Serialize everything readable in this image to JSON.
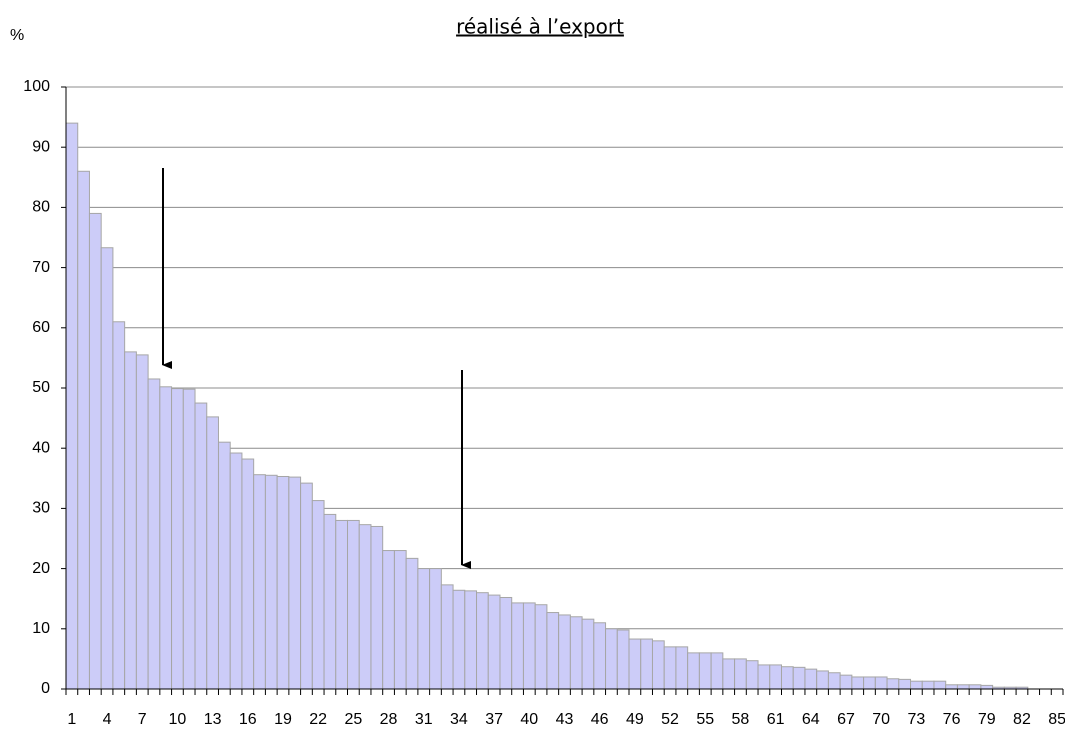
{
  "chart_data": {
    "type": "bar",
    "title": "réalisé à l’export",
    "y_label": "%",
    "categories": [
      "1",
      null,
      null,
      "4",
      null,
      null,
      "7",
      null,
      null,
      "10",
      null,
      null,
      "13",
      null,
      null,
      "16",
      null,
      null,
      "19",
      null,
      null,
      "22",
      null,
      null,
      "25",
      null,
      null,
      "28",
      null,
      null,
      "31",
      null,
      null,
      "34",
      null,
      null,
      "37",
      null,
      null,
      "40",
      null,
      null,
      "43",
      null,
      null,
      "46",
      null,
      null,
      "49",
      null,
      null,
      "52",
      null,
      null,
      "55",
      null,
      null,
      "58",
      null,
      null,
      "61",
      null,
      null,
      "64",
      null,
      null,
      "67",
      null,
      null,
      "70",
      null,
      null,
      "73",
      null,
      null,
      "76",
      null,
      null,
      "79",
      null,
      null,
      "82",
      null,
      null,
      "85"
    ],
    "values": [
      94,
      86,
      79,
      73.3,
      61,
      56,
      55.5,
      51.5,
      50.2,
      49.9,
      49.8,
      47.5,
      45.2,
      41,
      39.2,
      38.2,
      35.6,
      35.5,
      35.3,
      35.2,
      34.2,
      31.3,
      29,
      28,
      28,
      27.3,
      27,
      23,
      23,
      21.7,
      20,
      20,
      17.3,
      16.4,
      16.3,
      16,
      15.6,
      15.2,
      14.3,
      14.3,
      14,
      12.7,
      12.3,
      12,
      11.6,
      11,
      10,
      9.8,
      8.3,
      8.3,
      8,
      7,
      7,
      6,
      6,
      6,
      5,
      5,
      4.7,
      4,
      4,
      3.7,
      3.6,
      3.3,
      3,
      2.7,
      2.3,
      2,
      2,
      2,
      1.7,
      1.6,
      1.3,
      1.3,
      1.3,
      0.7,
      0.7,
      0.7,
      0.6,
      0.3,
      0.3,
      0.3,
      0,
      0,
      0
    ],
    "color": "#ccccf8",
    "ylim": [
      0,
      100
    ],
    "yticks": [
      0,
      10,
      20,
      30,
      40,
      50,
      60,
      70,
      80,
      90,
      100
    ],
    "grid": true
  }
}
